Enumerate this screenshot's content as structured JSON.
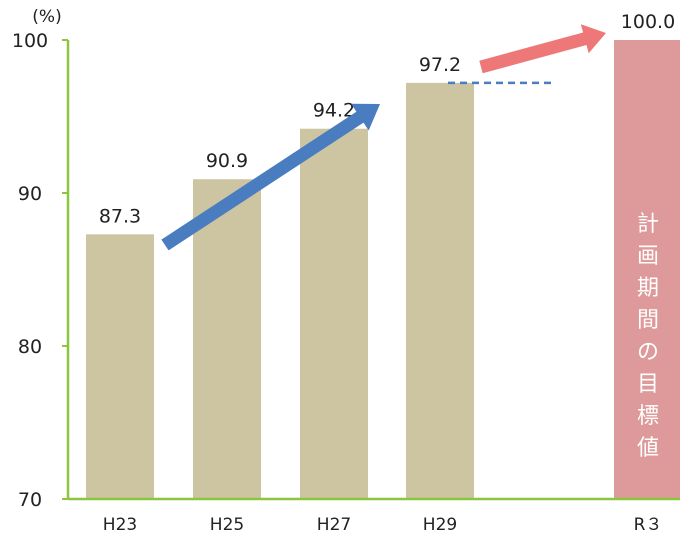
{
  "chart_data": {
    "type": "bar",
    "ylabel": "(%)",
    "ylim": [
      70,
      100
    ],
    "yticks": [
      70,
      80,
      90,
      100
    ],
    "grid": false,
    "categories": [
      "H23",
      "H25",
      "H27",
      "H29",
      "R３"
    ],
    "values": [
      87.3,
      90.9,
      94.2,
      97.2,
      100.0
    ],
    "value_labels": [
      "87.3",
      "90.9",
      "94.2",
      "97.2",
      "100.0"
    ],
    "target_index": 4,
    "target_label": "計画期間の目標値",
    "target_label_chars": [
      "計",
      "画",
      "期",
      "間",
      "の",
      "目",
      "標",
      "値"
    ],
    "colors": {
      "bar": "#cdc5a2",
      "target_bar": "#de9a9a",
      "axis": "#8cc63f",
      "trend_arrow": "#4a7cc0",
      "target_arrow": "#ee7777",
      "dashed_line": "#4a7cc0",
      "target_text": "#ffffff"
    }
  }
}
